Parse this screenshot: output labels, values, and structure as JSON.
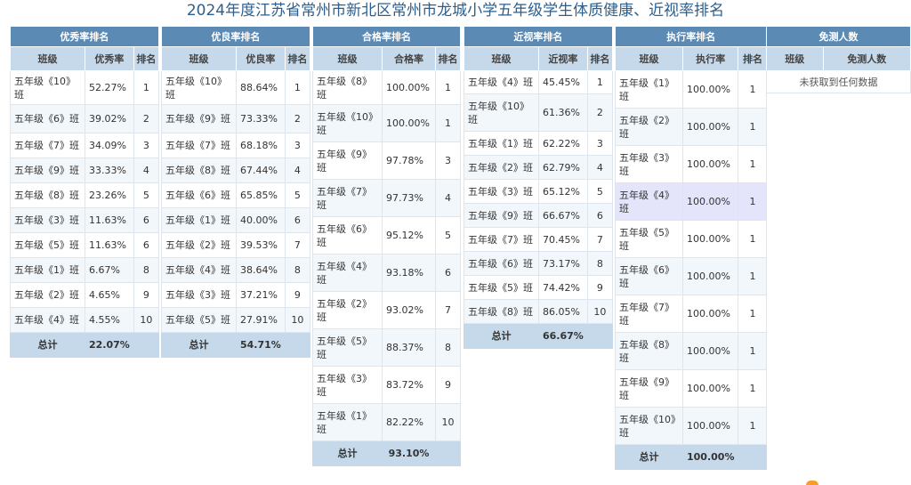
{
  "title": "2024年度江苏省常州市新北区常州市龙城小学五年级学生体质健康、近视率排名",
  "total_label": "总计",
  "col_class": "班级",
  "col_rank": "排名",
  "excellent": {
    "caption": "优秀率排名",
    "col_rate": "优秀率",
    "total": "22.07%",
    "rows": [
      {
        "cls": "五年级《10》班",
        "rate": "52.27%",
        "rank": "1"
      },
      {
        "cls": "五年级《6》班",
        "rate": "39.02%",
        "rank": "2"
      },
      {
        "cls": "五年级《7》班",
        "rate": "34.09%",
        "rank": "3"
      },
      {
        "cls": "五年级《9》班",
        "rate": "33.33%",
        "rank": "4"
      },
      {
        "cls": "五年级《8》班",
        "rate": "23.26%",
        "rank": "5"
      },
      {
        "cls": "五年级《3》班",
        "rate": "11.63%",
        "rank": "6"
      },
      {
        "cls": "五年级《5》班",
        "rate": "11.63%",
        "rank": "6"
      },
      {
        "cls": "五年级《1》班",
        "rate": "6.67%",
        "rank": "8"
      },
      {
        "cls": "五年级《2》班",
        "rate": "4.65%",
        "rank": "9"
      },
      {
        "cls": "五年级《4》班",
        "rate": "4.55%",
        "rank": "10"
      }
    ]
  },
  "good": {
    "caption": "优良率排名",
    "col_rate": "优良率",
    "total": "54.71%",
    "rows": [
      {
        "cls": "五年级《10》班",
        "rate": "88.64%",
        "rank": "1"
      },
      {
        "cls": "五年级《9》班",
        "rate": "73.33%",
        "rank": "2"
      },
      {
        "cls": "五年级《7》班",
        "rate": "68.18%",
        "rank": "3"
      },
      {
        "cls": "五年级《8》班",
        "rate": "67.44%",
        "rank": "4"
      },
      {
        "cls": "五年级《6》班",
        "rate": "65.85%",
        "rank": "5"
      },
      {
        "cls": "五年级《1》班",
        "rate": "40.00%",
        "rank": "6"
      },
      {
        "cls": "五年级《2》班",
        "rate": "39.53%",
        "rank": "7"
      },
      {
        "cls": "五年级《4》班",
        "rate": "38.64%",
        "rank": "8"
      },
      {
        "cls": "五年级《3》班",
        "rate": "37.21%",
        "rank": "9"
      },
      {
        "cls": "五年级《5》班",
        "rate": "27.91%",
        "rank": "10"
      }
    ]
  },
  "pass": {
    "caption": "合格率排名",
    "col_rate": "合格率",
    "total": "93.10%",
    "rows": [
      {
        "cls": "五年级《8》班",
        "rate": "100.00%",
        "rank": "1"
      },
      {
        "cls": "五年级《10》班",
        "rate": "100.00%",
        "rank": "1"
      },
      {
        "cls": "五年级《9》班",
        "rate": "97.78%",
        "rank": "3"
      },
      {
        "cls": "五年级《7》班",
        "rate": "97.73%",
        "rank": "4"
      },
      {
        "cls": "五年级《6》班",
        "rate": "95.12%",
        "rank": "5"
      },
      {
        "cls": "五年级《4》班",
        "rate": "93.18%",
        "rank": "6"
      },
      {
        "cls": "五年级《2》班",
        "rate": "93.02%",
        "rank": "7"
      },
      {
        "cls": "五年级《5》班",
        "rate": "88.37%",
        "rank": "8"
      },
      {
        "cls": "五年级《3》班",
        "rate": "83.72%",
        "rank": "9"
      },
      {
        "cls": "五年级《1》班",
        "rate": "82.22%",
        "rank": "10"
      }
    ]
  },
  "myopia": {
    "caption": "近视率排名",
    "col_rate": "近视率",
    "total": "66.67%",
    "rows": [
      {
        "cls": "五年级《4》班",
        "rate": "45.45%",
        "rank": "1"
      },
      {
        "cls": "五年级《10》班",
        "rate": "61.36%",
        "rank": "2"
      },
      {
        "cls": "五年级《1》班",
        "rate": "62.22%",
        "rank": "3"
      },
      {
        "cls": "五年级《2》班",
        "rate": "62.79%",
        "rank": "4"
      },
      {
        "cls": "五年级《3》班",
        "rate": "65.12%",
        "rank": "5"
      },
      {
        "cls": "五年级《9》班",
        "rate": "66.67%",
        "rank": "6"
      },
      {
        "cls": "五年级《7》班",
        "rate": "70.45%",
        "rank": "7"
      },
      {
        "cls": "五年级《6》班",
        "rate": "73.17%",
        "rank": "8"
      },
      {
        "cls": "五年级《5》班",
        "rate": "74.42%",
        "rank": "9"
      },
      {
        "cls": "五年级《8》班",
        "rate": "86.05%",
        "rank": "10"
      }
    ]
  },
  "execution": {
    "caption": "执行率排名",
    "col_rate": "执行率",
    "total": "100.00%",
    "rows": [
      {
        "cls": "五年级《1》班",
        "rate": "100.00%",
        "rank": "1"
      },
      {
        "cls": "五年级《2》班",
        "rate": "100.00%",
        "rank": "1"
      },
      {
        "cls": "五年级《3》班",
        "rate": "100.00%",
        "rank": "1"
      },
      {
        "cls": "五年级《4》班",
        "rate": "100.00%",
        "rank": "1"
      },
      {
        "cls": "五年级《5》班",
        "rate": "100.00%",
        "rank": "1"
      },
      {
        "cls": "五年级《6》班",
        "rate": "100.00%",
        "rank": "1"
      },
      {
        "cls": "五年级《7》班",
        "rate": "100.00%",
        "rank": "1"
      },
      {
        "cls": "五年级《8》班",
        "rate": "100.00%",
        "rank": "1"
      },
      {
        "cls": "五年级《9》班",
        "rate": "100.00%",
        "rank": "1"
      },
      {
        "cls": "五年级《10》班",
        "rate": "100.00%",
        "rank": "1"
      }
    ]
  },
  "exempt": {
    "caption": "免测人数",
    "col_count": "免测人数",
    "empty_text": "未获取到任何数据"
  }
}
